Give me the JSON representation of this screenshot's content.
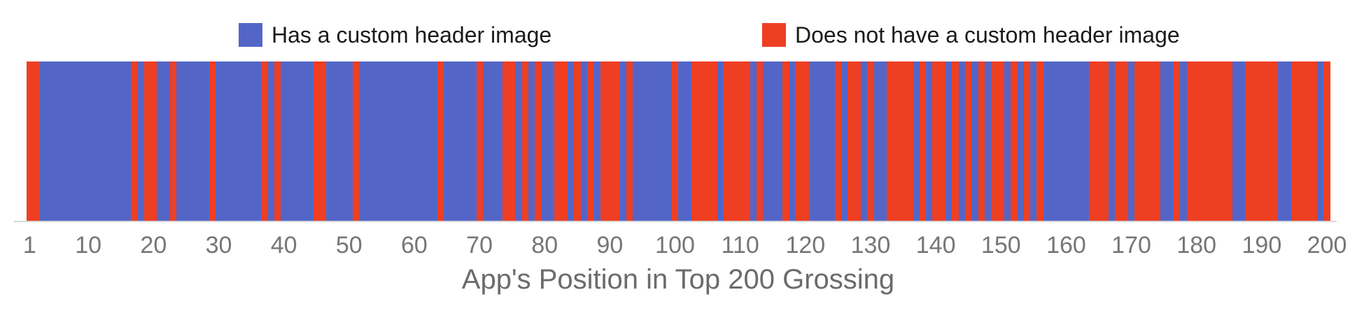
{
  "title": "App's Position in Top 200 Grossing",
  "legend": [
    {
      "label": "Has a custom header image",
      "color": "#5366c8"
    },
    {
      "label": "Does not have a custom header image",
      "color": "#ee3f23"
    }
  ],
  "colors": {
    "has_custom_header": "#5366c8",
    "no_custom_header": "#ee3f23",
    "axis_line": "#d9d9d9",
    "tick_text": "#767676",
    "title_text": "#6b6b6b"
  },
  "x_axis": {
    "ticks": [
      1,
      10,
      20,
      30,
      40,
      50,
      60,
      70,
      80,
      90,
      100,
      110,
      120,
      130,
      140,
      150,
      160,
      170,
      180,
      190,
      200
    ]
  },
  "chart_data": {
    "type": "heatmap",
    "title": "App's Position in Top 200 Grossing",
    "xlabel": "App's Position in Top 200 Grossing",
    "categories_note": "positions 1-200 of top grossing apps",
    "legend_entries": [
      "Has a custom header image",
      "Does not have a custom header image"
    ],
    "legend_position": "top",
    "value_meaning": "1 = has a custom header image (blue), 0 = does not have a custom header image (red)",
    "counts": {
      "has_custom_header": 115,
      "no_custom_header": 85
    },
    "values": [
      0,
      0,
      1,
      1,
      1,
      1,
      1,
      1,
      1,
      1,
      1,
      1,
      1,
      1,
      1,
      1,
      0,
      1,
      0,
      0,
      1,
      1,
      0,
      1,
      1,
      1,
      1,
      1,
      0,
      1,
      1,
      1,
      1,
      1,
      1,
      1,
      0,
      1,
      0,
      1,
      1,
      1,
      1,
      1,
      0,
      0,
      1,
      1,
      1,
      1,
      0,
      1,
      1,
      1,
      1,
      1,
      1,
      1,
      1,
      1,
      1,
      1,
      1,
      0,
      1,
      1,
      1,
      1,
      1,
      0,
      1,
      1,
      1,
      0,
      0,
      1,
      0,
      1,
      0,
      1,
      1,
      0,
      0,
      1,
      0,
      1,
      0,
      1,
      0,
      0,
      0,
      1,
      0,
      1,
      1,
      1,
      1,
      1,
      1,
      0,
      1,
      1,
      0,
      0,
      0,
      0,
      1,
      0,
      0,
      0,
      0,
      1,
      0,
      1,
      1,
      1,
      0,
      1,
      0,
      0,
      1,
      1,
      1,
      1,
      0,
      1,
      0,
      0,
      1,
      0,
      1,
      1,
      0,
      0,
      0,
      0,
      1,
      0,
      1,
      0,
      0,
      1,
      0,
      1,
      0,
      1,
      0,
      1,
      0,
      0,
      1,
      0,
      1,
      0,
      1,
      0,
      1,
      1,
      1,
      1,
      1,
      1,
      1,
      0,
      0,
      0,
      1,
      0,
      0,
      1,
      0,
      0,
      0,
      0,
      1,
      1,
      0,
      1,
      0,
      0,
      0,
      0,
      0,
      0,
      0,
      1,
      1,
      0,
      0,
      0,
      0,
      0,
      1,
      1,
      0,
      0,
      0,
      0,
      1,
      0
    ]
  }
}
